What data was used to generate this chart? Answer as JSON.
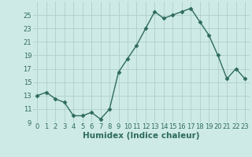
{
  "x": [
    0,
    1,
    2,
    3,
    4,
    5,
    6,
    7,
    8,
    9,
    10,
    11,
    12,
    13,
    14,
    15,
    16,
    17,
    18,
    19,
    20,
    21,
    22,
    23
  ],
  "y": [
    13,
    13.5,
    12.5,
    12,
    10,
    10,
    10.5,
    9.5,
    11,
    16.5,
    18.5,
    20.5,
    23,
    25.5,
    24.5,
    25,
    25.5,
    26,
    24,
    22,
    19,
    15.5,
    17,
    15.5
  ],
  "line_color": "#2e6b5e",
  "marker": "D",
  "marker_size": 2.5,
  "bg_color": "#ceeae6",
  "grid_color": "#aecfcb",
  "xlabel": "Humidex (Indice chaleur)",
  "xlim": [
    -0.5,
    23.5
  ],
  "ylim": [
    9,
    27
  ],
  "yticks": [
    9,
    11,
    13,
    15,
    17,
    19,
    21,
    23,
    25
  ],
  "xticks": [
    0,
    1,
    2,
    3,
    4,
    5,
    6,
    7,
    8,
    9,
    10,
    11,
    12,
    13,
    14,
    15,
    16,
    17,
    18,
    19,
    20,
    21,
    22,
    23
  ],
  "xtick_labels": [
    "0",
    "1",
    "2",
    "3",
    "4",
    "5",
    "6",
    "7",
    "8",
    "9",
    "10",
    "11",
    "12",
    "13",
    "14",
    "15",
    "16",
    "17",
    "18",
    "19",
    "20",
    "21",
    "22",
    "23"
  ],
  "linewidth": 1.0,
  "tick_fontsize": 6.0,
  "xlabel_fontsize": 7.5
}
